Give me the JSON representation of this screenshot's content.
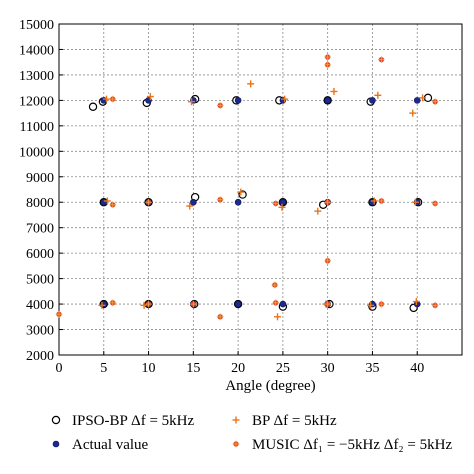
{
  "chart_data": {
    "type": "scatter",
    "title": "",
    "xlabel": "Angle (degree)",
    "ylabel": "",
    "xlim": [
      0,
      45
    ],
    "ylim": [
      2000,
      15000
    ],
    "xticks": [
      0,
      5,
      10,
      15,
      20,
      25,
      30,
      35,
      40
    ],
    "yticks": [
      2000,
      3000,
      4000,
      5000,
      6000,
      7000,
      8000,
      9000,
      10000,
      11000,
      12000,
      13000,
      14000,
      15000
    ],
    "grid": true,
    "legend": "bottom",
    "series": [
      {
        "name": "IPSO-BP Δf = 5kHz",
        "marker": "open-circle",
        "color": "#000000",
        "points": [
          [
            3.8,
            11750
          ],
          [
            5.0,
            8000
          ],
          [
            5.0,
            4000
          ],
          [
            4.9,
            11950
          ],
          [
            9.8,
            11900
          ],
          [
            10.0,
            8000
          ],
          [
            10.0,
            4000
          ],
          [
            15.2,
            12050
          ],
          [
            15.2,
            8200
          ],
          [
            15.1,
            4000
          ],
          [
            19.8,
            12000
          ],
          [
            20.5,
            8300
          ],
          [
            20.0,
            4000
          ],
          [
            24.6,
            12000
          ],
          [
            25.0,
            3900
          ],
          [
            25.0,
            8000
          ],
          [
            30.0,
            12000
          ],
          [
            29.5,
            7900
          ],
          [
            30.2,
            4000
          ],
          [
            34.8,
            11950
          ],
          [
            35.0,
            8000
          ],
          [
            35.0,
            3900
          ],
          [
            39.6,
            3850
          ],
          [
            40.1,
            8000
          ],
          [
            41.2,
            12100
          ]
        ]
      },
      {
        "name": "Actual value",
        "marker": "filled-circle",
        "color": "#1c2a8c",
        "points": [
          [
            5,
            12000
          ],
          [
            5,
            8000
          ],
          [
            5,
            4000
          ],
          [
            10,
            12000
          ],
          [
            10,
            8000
          ],
          [
            10,
            4000
          ],
          [
            15,
            12000
          ],
          [
            15,
            8000
          ],
          [
            15,
            4000
          ],
          [
            20,
            12000
          ],
          [
            20,
            8000
          ],
          [
            20,
            4000
          ],
          [
            25,
            12000
          ],
          [
            25,
            8000
          ],
          [
            25,
            4000
          ],
          [
            30,
            12000
          ],
          [
            30,
            8000
          ],
          [
            30,
            4000
          ],
          [
            35,
            12000
          ],
          [
            35,
            8000
          ],
          [
            35,
            4000
          ],
          [
            40,
            12000
          ],
          [
            40,
            8000
          ],
          [
            40,
            4000
          ]
        ]
      },
      {
        "name": "BP Δf = 5kHz",
        "marker": "plus",
        "color": "#e8741a",
        "points": [
          [
            5.3,
            12050
          ],
          [
            10.2,
            12150
          ],
          [
            14.8,
            11950
          ],
          [
            21.4,
            12650
          ],
          [
            25.2,
            12050
          ],
          [
            30.7,
            12350
          ],
          [
            35.6,
            12200
          ],
          [
            39.5,
            11500
          ],
          [
            40.6,
            12100
          ],
          [
            5.4,
            8050
          ],
          [
            14.6,
            7850
          ],
          [
            20.3,
            8400
          ],
          [
            24.9,
            7800
          ],
          [
            28.9,
            7650
          ],
          [
            35.2,
            8050
          ],
          [
            39.8,
            8000
          ],
          [
            4.8,
            3950
          ],
          [
            9.5,
            3950
          ],
          [
            24.4,
            3500
          ],
          [
            29.8,
            4000
          ],
          [
            34.8,
            3950
          ],
          [
            39.9,
            4100
          ]
        ]
      },
      {
        "name": "MUSIC Δf₁ = −5kHz Δf₂ = 5kHz",
        "marker": "asterisk",
        "color": "#e0491e",
        "points": [
          [
            6.0,
            12050
          ],
          [
            18.0,
            11800
          ],
          [
            30.0,
            13700
          ],
          [
            30.0,
            13400
          ],
          [
            36.0,
            13600
          ],
          [
            42.0,
            11950
          ],
          [
            6.0,
            7900
          ],
          [
            10.0,
            8000
          ],
          [
            18.0,
            8100
          ],
          [
            24.2,
            7950
          ],
          [
            30.0,
            8000
          ],
          [
            30.0,
            5700
          ],
          [
            36.0,
            8050
          ],
          [
            42.0,
            7950
          ],
          [
            0.0,
            3600
          ],
          [
            6.0,
            4050
          ],
          [
            10.0,
            4000
          ],
          [
            15.0,
            4000
          ],
          [
            18.0,
            3500
          ],
          [
            24.1,
            4750
          ],
          [
            24.2,
            4050
          ],
          [
            30.0,
            4000
          ],
          [
            36.0,
            4000
          ],
          [
            42.0,
            3950
          ]
        ]
      }
    ]
  }
}
